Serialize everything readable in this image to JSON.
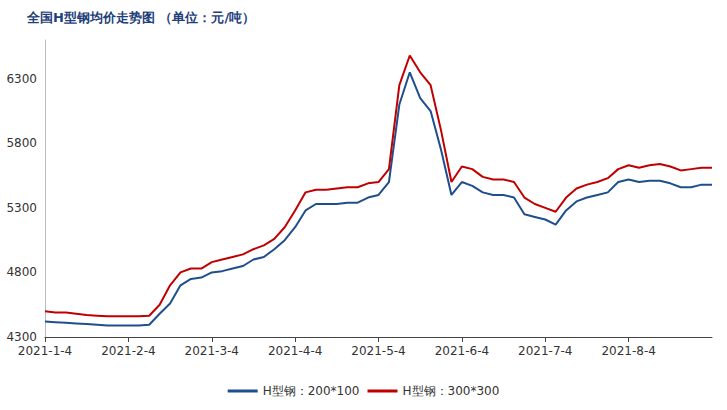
{
  "chart_data": {
    "type": "line",
    "title": "全国H型钢均价走势图 （单位：元/吨）",
    "categories": [
      "2021-1-4",
      null,
      null,
      null,
      null,
      null,
      null,
      null,
      "2021-2-4",
      null,
      null,
      null,
      null,
      null,
      null,
      null,
      "2021-3-4",
      null,
      null,
      null,
      null,
      null,
      null,
      null,
      "2021-4-4",
      null,
      null,
      null,
      null,
      null,
      null,
      null,
      "2021-5-4",
      null,
      null,
      null,
      null,
      null,
      null,
      null,
      "2021-6-4",
      null,
      null,
      null,
      null,
      null,
      null,
      null,
      "2021-7-4",
      null,
      null,
      null,
      null,
      null,
      null,
      null,
      "2021-8-4",
      null,
      null,
      null,
      null,
      null,
      null,
      null,
      null
    ],
    "series": [
      {
        "name": "H型钢：200*100",
        "color": "#1f4e8c",
        "values": [
          4420,
          4415,
          4410,
          4405,
          4400,
          4395,
          4390,
          4390,
          4390,
          4390,
          4395,
          4480,
          4560,
          4700,
          4750,
          4760,
          4800,
          4810,
          4830,
          4850,
          4900,
          4920,
          4980,
          5050,
          5150,
          5280,
          5330,
          5330,
          5330,
          5340,
          5340,
          5380,
          5400,
          5500,
          6100,
          6350,
          6150,
          6050,
          5750,
          5400,
          5500,
          5470,
          5420,
          5400,
          5400,
          5380,
          5250,
          5230,
          5210,
          5170,
          5280,
          5350,
          5380,
          5400,
          5420,
          5500,
          5520,
          5500,
          5510,
          5510,
          5490,
          5460,
          5460,
          5480,
          5480
        ]
      },
      {
        "name": "H型钢：300*300",
        "color": "#c00000",
        "values": [
          4500,
          4490,
          4490,
          4480,
          4470,
          4465,
          4460,
          4460,
          4460,
          4460,
          4465,
          4550,
          4700,
          4800,
          4830,
          4830,
          4880,
          4900,
          4920,
          4940,
          4980,
          5010,
          5060,
          5150,
          5280,
          5420,
          5440,
          5440,
          5450,
          5460,
          5460,
          5490,
          5500,
          5600,
          6250,
          6480,
          6350,
          6250,
          5900,
          5500,
          5620,
          5600,
          5540,
          5520,
          5520,
          5500,
          5380,
          5330,
          5300,
          5270,
          5380,
          5450,
          5480,
          5500,
          5530,
          5600,
          5630,
          5610,
          5630,
          5640,
          5620,
          5590,
          5600,
          5610,
          5610
        ]
      }
    ],
    "ylim": [
      4300,
      6600
    ],
    "yticks": [
      4300,
      4800,
      5300,
      5800,
      6300
    ],
    "grid": false,
    "legend": "bottom"
  }
}
